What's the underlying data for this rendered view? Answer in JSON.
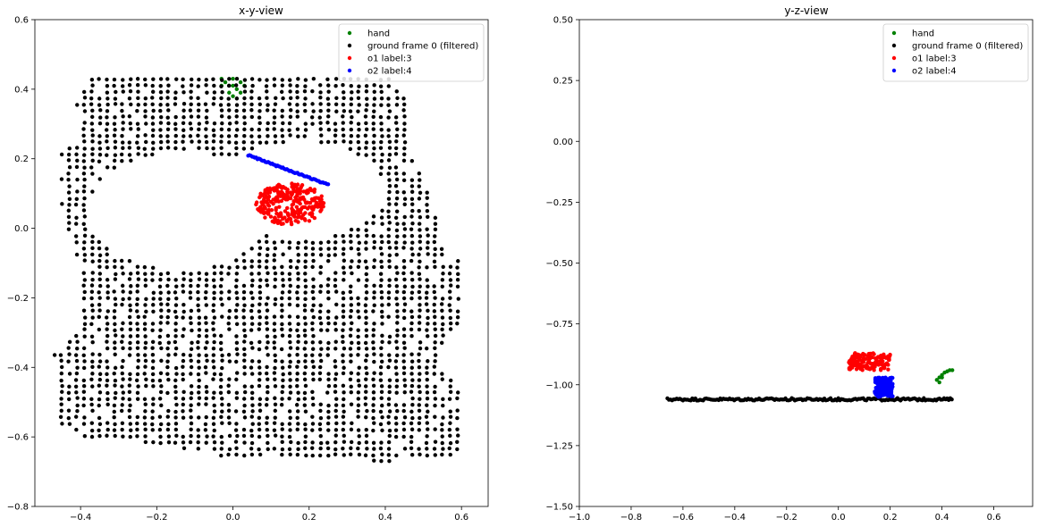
{
  "chart_data": [
    {
      "type": "scatter",
      "title": "x-y-view",
      "xlabel": "",
      "ylabel": "",
      "xlim": [
        -0.52,
        0.67
      ],
      "ylim": [
        -0.8,
        0.6
      ],
      "xticks": [
        -0.4,
        -0.2,
        0.0,
        0.2,
        0.4,
        0.6
      ],
      "xtick_labels": [
        "−0.4",
        "−0.2",
        "0.0",
        "0.2",
        "0.4",
        "0.6"
      ],
      "yticks": [
        -0.8,
        -0.6,
        -0.4,
        -0.2,
        0.0,
        0.2,
        0.4,
        0.6
      ],
      "ytick_labels": [
        "−0.8",
        "−0.6",
        "−0.4",
        "−0.2",
        "0.0",
        "0.2",
        "0.4",
        "0.6"
      ],
      "grid": false,
      "legend_position": "top-right",
      "series": [
        {
          "name": "hand",
          "color": "#008000",
          "points": [
            [
              -0.03,
              0.43
            ],
            [
              -0.02,
              0.42
            ],
            [
              0.0,
              0.43
            ],
            [
              0.02,
              0.42
            ],
            [
              -0.01,
              0.41
            ],
            [
              0.01,
              0.4
            ],
            [
              0.02,
              0.39
            ],
            [
              -0.01,
              0.39
            ],
            [
              0.0,
              0.38
            ],
            [
              0.03,
              0.41
            ],
            [
              -0.03,
              0.41
            ],
            [
              0.0,
              0.41
            ]
          ]
        },
        {
          "name": "ground frame 0 (filtered)",
          "color": "#000000",
          "shape": {
            "outer": [
              [
                -0.38,
                0.43
              ],
              [
                0.42,
                0.43
              ],
              [
                0.46,
                0.36
              ],
              [
                0.46,
                0.21
              ],
              [
                0.49,
                0.17
              ],
              [
                0.53,
                0.04
              ],
              [
                0.55,
                -0.05
              ],
              [
                0.61,
                -0.1
              ],
              [
                0.61,
                -0.26
              ],
              [
                0.55,
                -0.31
              ],
              [
                0.55,
                -0.4
              ],
              [
                0.6,
                -0.48
              ],
              [
                0.61,
                -0.66
              ],
              [
                0.4,
                -0.67
              ],
              [
                0.2,
                -0.66
              ],
              [
                0.0,
                -0.66
              ],
              [
                -0.2,
                -0.62
              ],
              [
                -0.4,
                -0.6
              ],
              [
                -0.46,
                -0.56
              ],
              [
                -0.47,
                -0.36
              ],
              [
                -0.44,
                -0.32
              ],
              [
                -0.4,
                -0.29
              ],
              [
                -0.4,
                -0.1
              ],
              [
                -0.44,
                0.0
              ],
              [
                -0.45,
                0.07
              ],
              [
                -0.45,
                0.23
              ],
              [
                -0.4,
                0.25
              ],
              [
                -0.41,
                0.36
              ]
            ],
            "holes": [
              {
                "center": [
                  -0.14,
                  0.05
                ],
                "radii": [
                  0.24,
                  0.17
                ]
              },
              {
                "center": [
                  0.18,
                  0.11
                ],
                "radii": [
                  0.22,
                  0.14
                ]
              }
            ],
            "grid_step": 0.02
          }
        },
        {
          "name": "o1 label:3",
          "color": "#ff0000",
          "blob": {
            "center": [
              0.15,
              0.07
            ],
            "radii": [
              0.09,
              0.06
            ]
          }
        },
        {
          "name": "o2 label:4",
          "color": "#0000ff",
          "line": {
            "from": [
              0.04,
              0.21
            ],
            "to": [
              0.25,
              0.125
            ]
          }
        }
      ]
    },
    {
      "type": "scatter",
      "title": "y-z-view",
      "xlabel": "",
      "ylabel": "",
      "xlim": [
        -1.0,
        0.75
      ],
      "ylim": [
        -1.5,
        0.5
      ],
      "xticks": [
        -1.0,
        -0.8,
        -0.6,
        -0.4,
        -0.2,
        0.0,
        0.2,
        0.4,
        0.6
      ],
      "xtick_labels": [
        "−1.0",
        "−0.8",
        "−0.6",
        "−0.4",
        "−0.2",
        "0.0",
        "0.2",
        "0.4",
        "0.6"
      ],
      "yticks": [
        -1.5,
        -1.25,
        -1.0,
        -0.75,
        -0.5,
        -0.25,
        0.0,
        0.25,
        0.5
      ],
      "ytick_labels": [
        "−1.50",
        "−1.25",
        "−1.00",
        "−0.75",
        "−0.50",
        "−0.25",
        "0.00",
        "0.25",
        "0.50"
      ],
      "grid": false,
      "legend_position": "top-right",
      "series": [
        {
          "name": "hand",
          "color": "#008000",
          "points": [
            [
              0.38,
              -0.98
            ],
            [
              0.39,
              -0.97
            ],
            [
              0.4,
              -0.96
            ],
            [
              0.41,
              -0.95
            ],
            [
              0.42,
              -0.945
            ],
            [
              0.43,
              -0.94
            ],
            [
              0.44,
              -0.94
            ],
            [
              0.39,
              -0.99
            ],
            [
              0.4,
              -0.97
            ]
          ]
        },
        {
          "name": "ground frame 0 (filtered)",
          "color": "#000000",
          "band": {
            "x": [
              -0.66,
              0.44
            ],
            "y": [
              -1.065,
              -1.055
            ]
          }
        },
        {
          "name": "o1 label:3",
          "color": "#ff0000",
          "box": {
            "x": [
              0.04,
              0.2
            ],
            "y": [
              -0.94,
              -0.87
            ]
          }
        },
        {
          "name": "o2 label:4",
          "color": "#0000ff",
          "box": {
            "x": [
              0.14,
              0.21
            ],
            "y": [
              -1.05,
              -0.97
            ]
          }
        }
      ]
    }
  ]
}
